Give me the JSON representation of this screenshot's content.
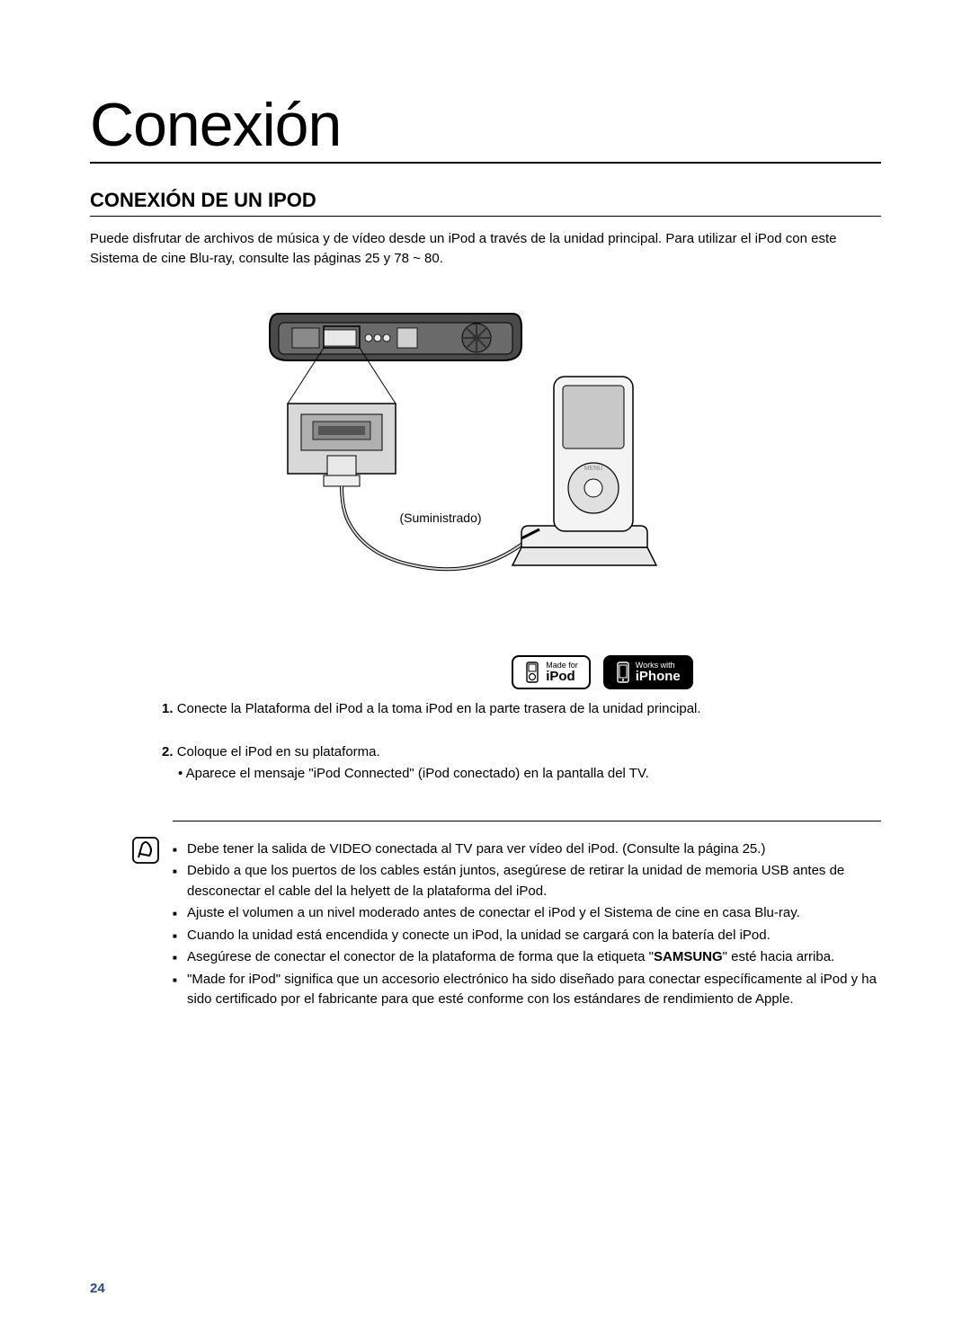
{
  "page": {
    "title": "Conexión",
    "section_heading": "CONEXIÓN DE UN IPOD",
    "intro": "Puede disfrutar de archivos de música y de vídeo desde un iPod a través de la unidad principal. Para utilizar el iPod con este Sistema de cine Blu-ray, consulte las páginas 25 y 78 ~ 80.",
    "page_number": "24"
  },
  "diagram": {
    "cable_label": "(Suministrado)",
    "badges": {
      "made_for": {
        "top": "Made for",
        "bottom": "iPod"
      },
      "works_with": {
        "top": "Works with",
        "bottom": "iPhone"
      }
    }
  },
  "steps": [
    {
      "num": "1.",
      "text": "Conecte la Plataforma del iPod a la toma iPod en la parte trasera de la unidad principal."
    },
    {
      "num": "2.",
      "text": "Coloque el iPod en su plataforma.",
      "sub": "Aparece el mensaje \"iPod Connected\" (iPod conectado) en la pantalla del TV."
    }
  ],
  "notes": [
    "Debe tener la salida de VIDEO conectada al TV para ver vídeo del iPod. (Consulte la página 25.)",
    "Debido a que los puertos de los cables están juntos, asegúrese de retirar la unidad de memoria USB antes de desconectar el cable del la helyett de la plataforma del iPod.",
    "Ajuste el volumen a un nivel moderado antes de conectar el iPod y el Sistema de cine en casa Blu-ray.",
    "Cuando la unidad está encendida y conecte un iPod, la unidad se cargará con la batería del iPod.",
    "Asegúrese de conectar el conector de la plataforma de forma que la etiqueta \"SAMSUNG\" esté hacia arriba.",
    "\"Made for iPod\" significa que un accesorio electrónico ha sido diseñado para conectar específicamente al iPod y ha sido certificado por el fabricante para que esté conforme con los estándares de rendimiento de Apple."
  ],
  "note_bold_word": "SAMSUNG",
  "colors": {
    "text": "#000000",
    "page_num": "#2a4a8a",
    "diagram_gray": "#6a6a6a",
    "diagram_light": "#d8d8d8",
    "diagram_dark": "#333333"
  }
}
